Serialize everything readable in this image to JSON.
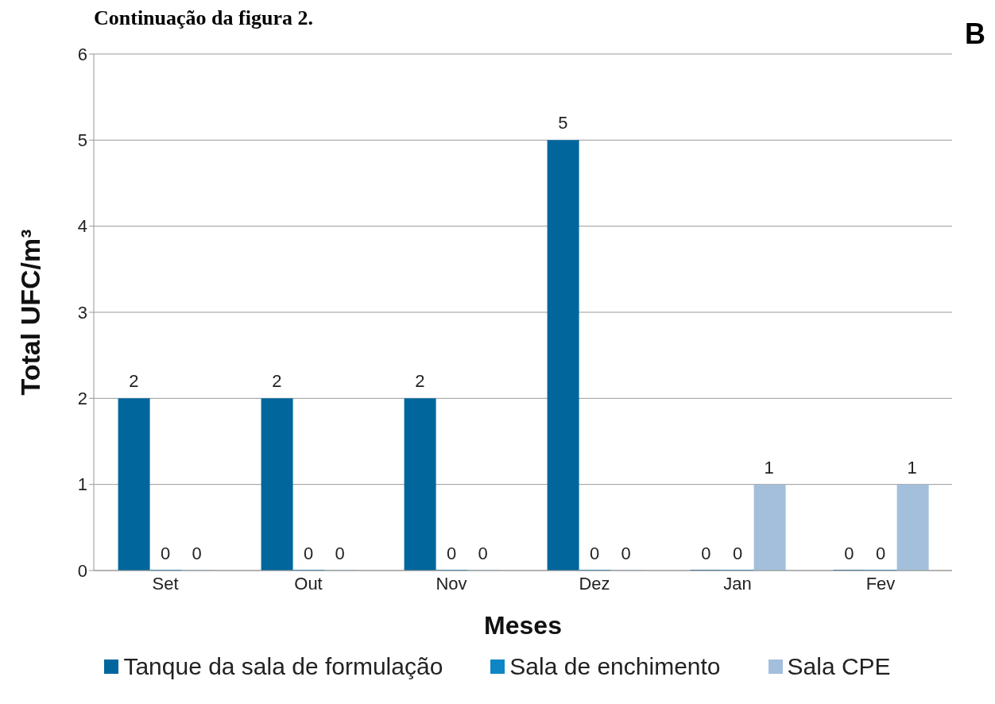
{
  "chart_data": {
    "type": "bar",
    "title": "Continuação da figura 2.",
    "annotations": [
      "B"
    ],
    "xlabel": "Meses",
    "ylabel": "Total UFC/m³",
    "categories": [
      "Set",
      "Out",
      "Nov",
      "Dez",
      "Jan",
      "Fev"
    ],
    "series": [
      {
        "name": "Tanque da sala de formulação",
        "color": "#00669c",
        "values": [
          2,
          2,
          2,
          5,
          0,
          0
        ]
      },
      {
        "name": "Sala de enchimento",
        "color": "#0d86c3",
        "values": [
          0,
          0,
          0,
          0,
          0,
          0
        ]
      },
      {
        "name": "Sala CPE",
        "color": "#a3bfdc",
        "values": [
          0,
          0,
          0,
          0,
          1,
          1
        ]
      }
    ],
    "ylim": [
      0,
      6
    ],
    "yticks": [
      0,
      1,
      2,
      3,
      4,
      5,
      6
    ],
    "grid": "y",
    "legend": "bottom",
    "data_labels": true
  }
}
